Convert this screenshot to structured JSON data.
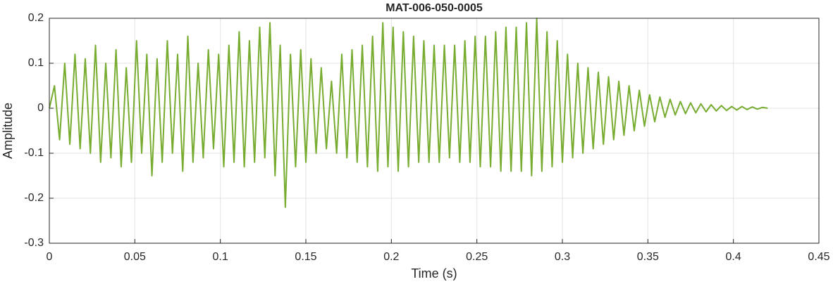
{
  "chart_data": {
    "type": "line",
    "title": "MAT-006-050-0005",
    "xlabel": "Time (s)",
    "ylabel": "Amplitude",
    "x": [
      0,
      0.003,
      0.006,
      0.009,
      0.012,
      0.015,
      0.018,
      0.021,
      0.024,
      0.027,
      0.03,
      0.033,
      0.036,
      0.039,
      0.042,
      0.045,
      0.048,
      0.051,
      0.054,
      0.057,
      0.06,
      0.063,
      0.066,
      0.069,
      0.072,
      0.075,
      0.078,
      0.081,
      0.084,
      0.087,
      0.09,
      0.093,
      0.096,
      0.099,
      0.102,
      0.105,
      0.108,
      0.111,
      0.114,
      0.117,
      0.12,
      0.123,
      0.126,
      0.129,
      0.132,
      0.135,
      0.138,
      0.141,
      0.144,
      0.147,
      0.15,
      0.153,
      0.156,
      0.159,
      0.162,
      0.165,
      0.168,
      0.171,
      0.174,
      0.177,
      0.18,
      0.183,
      0.186,
      0.189,
      0.192,
      0.195,
      0.198,
      0.201,
      0.204,
      0.207,
      0.21,
      0.213,
      0.216,
      0.219,
      0.222,
      0.225,
      0.228,
      0.231,
      0.234,
      0.237,
      0.24,
      0.243,
      0.246,
      0.249,
      0.252,
      0.255,
      0.258,
      0.261,
      0.264,
      0.267,
      0.27,
      0.273,
      0.276,
      0.279,
      0.282,
      0.285,
      0.288,
      0.291,
      0.294,
      0.297,
      0.3,
      0.303,
      0.306,
      0.309,
      0.312,
      0.315,
      0.318,
      0.321,
      0.324,
      0.327,
      0.33,
      0.333,
      0.336,
      0.339,
      0.342,
      0.345,
      0.348,
      0.351,
      0.354,
      0.357,
      0.36,
      0.363,
      0.366,
      0.369,
      0.372,
      0.375,
      0.378,
      0.381,
      0.384,
      0.387,
      0.39,
      0.393,
      0.396,
      0.399,
      0.402,
      0.405,
      0.408,
      0.411,
      0.414,
      0.417,
      0.42
    ],
    "series": [
      {
        "color": "#77ac30",
        "values": [
          0,
          0.05,
          -0.07,
          0.1,
          -0.08,
          0.12,
          -0.09,
          0.11,
          -0.1,
          0.14,
          -0.12,
          0.1,
          -0.11,
          0.13,
          -0.13,
          0.09,
          -0.12,
          0.15,
          -0.1,
          0.12,
          -0.15,
          0.11,
          -0.12,
          0.15,
          -0.1,
          0.12,
          -0.14,
          0.16,
          -0.12,
          0.1,
          -0.11,
          0.13,
          -0.09,
          0.12,
          -0.13,
          0.14,
          -0.12,
          0.17,
          -0.13,
          0.15,
          -0.12,
          0.18,
          -0.11,
          0.19,
          -0.15,
          0.14,
          -0.22,
          0.12,
          -0.13,
          0.13,
          -0.12,
          0.11,
          -0.1,
          0.09,
          -0.09,
          0.06,
          -0.1,
          0.12,
          -0.11,
          0.13,
          -0.12,
          0.14,
          -0.13,
          0.16,
          -0.14,
          0.19,
          -0.13,
          0.18,
          -0.14,
          0.17,
          -0.13,
          0.16,
          -0.12,
          0.15,
          -0.12,
          0.14,
          -0.12,
          0.14,
          -0.11,
          0.14,
          -0.12,
          0.15,
          -0.12,
          0.16,
          -0.13,
          0.16,
          -0.13,
          0.17,
          -0.14,
          0.18,
          -0.14,
          0.18,
          -0.14,
          0.19,
          -0.15,
          0.2,
          -0.14,
          0.17,
          -0.13,
          0.15,
          -0.12,
          0.12,
          -0.11,
          0.1,
          -0.1,
          0.09,
          -0.09,
          0.08,
          -0.08,
          0.07,
          -0.07,
          0.06,
          -0.06,
          0.05,
          -0.05,
          0.04,
          -0.04,
          0.03,
          -0.03,
          0.025,
          -0.02,
          0.02,
          -0.015,
          0.015,
          -0.012,
          0.012,
          -0.01,
          0.01,
          -0.008,
          0.008,
          -0.006,
          0.006,
          -0.005,
          0.004,
          -0.004,
          0.004,
          -0.003,
          0.003,
          -0.002,
          0.002,
          0
        ]
      }
    ],
    "xlim": [
      0,
      0.45
    ],
    "xticks": [
      0,
      0.05,
      0.1,
      0.15,
      0.2,
      0.25,
      0.3,
      0.35,
      0.4,
      0.45
    ],
    "ylim": [
      -0.3,
      0.2
    ],
    "yticks": [
      -0.3,
      -0.2,
      -0.1,
      0,
      0.1,
      0.2
    ],
    "grid": true
  }
}
